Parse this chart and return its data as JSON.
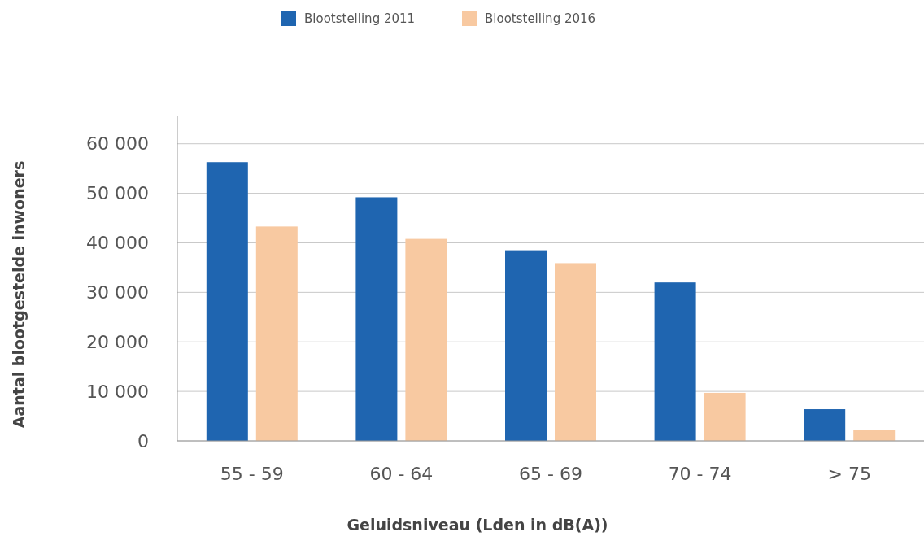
{
  "chart_data": {
    "type": "bar",
    "xlabel": "Geluidsniveau (Lden in dB(A))",
    "ylabel": "Aantal blootgestelde inwoners",
    "categories": [
      "55 - 59",
      "60 - 64",
      "65 - 69",
      "70 - 74",
      "> 75"
    ],
    "series": [
      {
        "name": "Blootstelling 2011",
        "color": "#1f65b0",
        "values": [
          56300,
          49200,
          38500,
          32000,
          6400
        ]
      },
      {
        "name": "Blootstelling 2016",
        "color": "#f8c9a1",
        "values": [
          43300,
          40800,
          35900,
          9700,
          2200
        ]
      }
    ],
    "ylim": [
      0,
      65700
    ],
    "yticks": [
      {
        "value": 0,
        "label": "0"
      },
      {
        "value": 10000,
        "label": "10 000"
      },
      {
        "value": 20000,
        "label": "20 000"
      },
      {
        "value": 30000,
        "label": "30 000"
      },
      {
        "value": 40000,
        "label": "40 000"
      },
      {
        "value": 50000,
        "label": "50 000"
      },
      {
        "value": 60000,
        "label": "60 000"
      }
    ],
    "grid": "y",
    "legend": "top"
  }
}
